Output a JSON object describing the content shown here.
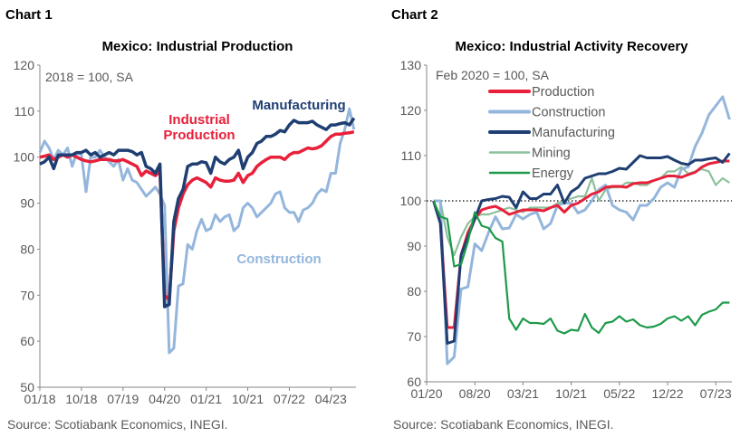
{
  "chart_data": [
    {
      "type": "line",
      "panel_label": "Chart 1",
      "title": "Mexico: Industrial Production",
      "note": "2018 = 100, SA",
      "source": "Source: Scotiabank Economics, INEGI.",
      "x_start": "01/18",
      "x_end": "09/23",
      "x_ticks": [
        "01/18",
        "10/18",
        "07/19",
        "04/20",
        "01/21",
        "10/21",
        "07/22",
        "04/23"
      ],
      "y_ticks": [
        50,
        60,
        70,
        80,
        90,
        100,
        110,
        120
      ],
      "ylim": [
        50,
        120
      ],
      "grid": false,
      "series": [
        {
          "name": "Industrial Production",
          "label_lines": [
            "Industrial",
            "Production"
          ],
          "color": "#e8203a",
          "values": [
            100,
            100.2,
            100.5,
            99.5,
            100,
            100.5,
            100,
            100.5,
            100,
            99.5,
            99.2,
            99,
            99.2,
            99.5,
            99.5,
            99.5,
            99.2,
            99.2,
            99.5,
            99,
            98.5,
            98,
            96,
            97,
            96.5,
            96,
            97,
            70,
            69,
            84,
            89,
            92,
            94,
            95,
            95.5,
            95,
            94.5,
            93.5,
            95.5,
            95,
            94.8,
            94.8,
            95,
            96.5,
            94.5,
            96,
            96.5,
            98,
            98.8,
            99.5,
            100,
            100,
            100,
            99.5,
            100.5,
            101,
            101,
            101.5,
            102,
            101.8,
            102,
            102.5,
            103.5,
            104.5,
            105,
            105,
            105.2,
            105.3,
            105.5
          ]
        },
        {
          "name": "Manufacturing",
          "label_lines": [
            "Manufacturing"
          ],
          "color": "#1f3f73",
          "values": [
            98.5,
            99,
            100,
            97.5,
            100.5,
            100.5,
            100.5,
            100.5,
            101,
            101,
            101.5,
            100.5,
            101,
            100,
            100.5,
            101,
            100.5,
            101.5,
            101.5,
            101.5,
            101.2,
            100.5,
            101,
            98,
            97.5,
            96.5,
            98.5,
            67.5,
            68,
            86,
            91,
            93,
            98,
            98.5,
            98.5,
            99,
            98.8,
            96.5,
            100,
            99,
            98.5,
            99.5,
            100,
            101.5,
            97.5,
            100,
            101,
            103,
            103.5,
            104.5,
            104.5,
            105,
            105.8,
            105.5,
            107,
            108,
            107.5,
            107.5,
            107.5,
            107.8,
            107,
            106.5,
            106,
            107,
            107,
            107.3,
            107.5,
            107,
            108.5
          ]
        },
        {
          "name": "Construction",
          "label_lines": [
            "Construction"
          ],
          "color": "#94b6dc",
          "values": [
            101,
            103.5,
            102,
            99.5,
            101.5,
            100.5,
            102,
            98,
            101,
            100.5,
            92.5,
            100,
            100,
            101.5,
            100,
            99,
            98,
            99.5,
            95,
            97.5,
            95,
            94.5,
            93,
            91.5,
            92.5,
            93.5,
            92,
            89.5,
            57.5,
            58.5,
            72,
            72.5,
            81,
            80,
            84,
            86.5,
            84,
            84.5,
            87.5,
            86,
            87,
            87.5,
            84,
            85,
            89,
            90,
            89,
            87,
            88,
            89,
            90,
            92,
            92.5,
            89,
            88,
            88,
            86,
            88.5,
            89,
            90,
            92,
            93,
            92.5,
            96.5,
            96.5,
            103,
            106,
            110.5,
            106
          ]
        }
      ]
    },
    {
      "type": "line",
      "panel_label": "Chart 2",
      "title": "Mexico: Industrial Activity Recovery",
      "note": "Feb 2020 = 100, SA",
      "source": "Source: Scotiabank Economics, INEGI.",
      "x_start": "02/20",
      "x_end": "09/23",
      "x_ticks": [
        "01/20",
        "08/20",
        "03/21",
        "10/21",
        "05/22",
        "12/22",
        "07/23"
      ],
      "y_ticks": [
        60,
        70,
        80,
        90,
        100,
        110,
        120,
        130
      ],
      "ylim": [
        60,
        130
      ],
      "reference_line": 100,
      "grid": false,
      "legend_position": "top-left",
      "series": [
        {
          "name": "Production",
          "color": "#e8203a",
          "values": [
            100,
            95,
            72,
            72,
            88,
            93,
            96,
            98,
            98.5,
            98.8,
            98,
            97,
            97.5,
            98,
            98,
            98,
            97.8,
            98.5,
            99,
            97.5,
            99,
            99.5,
            100.5,
            101.5,
            102,
            103,
            103.2,
            103.2,
            103,
            103.8,
            104,
            104,
            104.5,
            105,
            105.5,
            105.5,
            105.2,
            105.8,
            106.3,
            107.5,
            108.2,
            108.5,
            108.8,
            108.8
          ]
        },
        {
          "name": "Construction",
          "color": "#94b6dc",
          "values": [
            100,
            100,
            64,
            65.5,
            80.5,
            81,
            90.5,
            89,
            93,
            96.5,
            93.8,
            94,
            97,
            96,
            97,
            97.5,
            93.8,
            95,
            99,
            99.5,
            99.5,
            97.3,
            98,
            100,
            102.5,
            103.5,
            99,
            98,
            97.5,
            95.8,
            99,
            99,
            100.5,
            103,
            104,
            103,
            107,
            107.5,
            112,
            115,
            119,
            121,
            123,
            118
          ]
        },
        {
          "name": "Manufacturing",
          "color": "#1f3f73",
          "values": [
            100,
            95,
            68.5,
            69,
            88,
            92,
            96,
            100,
            100.3,
            100.5,
            101,
            100.8,
            98.5,
            102,
            100.5,
            100.5,
            101.5,
            101.5,
            103.5,
            99.5,
            102,
            103,
            105,
            105.5,
            106,
            106,
            106.5,
            107.2,
            107,
            108.5,
            110,
            109.5,
            109.5,
            109.5,
            109.8,
            109,
            108.3,
            108,
            109,
            109,
            109.3,
            109.5,
            108.5,
            110.5
          ]
        },
        {
          "name": "Mining",
          "color": "#8cc09a",
          "values": [
            100,
            100,
            92,
            88,
            92,
            95,
            96.5,
            97,
            97,
            97.5,
            98,
            98.5,
            98,
            97.5,
            98.5,
            98.5,
            98.5,
            98.5,
            99.5,
            100,
            100.5,
            101,
            101,
            105,
            100,
            102.5,
            103,
            103,
            104,
            104,
            103.5,
            103.5,
            104.5,
            105,
            106.5,
            106.5,
            107.5,
            106,
            106.5,
            107,
            106.5,
            103.5,
            105,
            104
          ]
        },
        {
          "name": "Energy",
          "color": "#1e9a4a",
          "values": [
            100,
            96.5,
            96,
            85.5,
            86,
            91,
            97.5,
            94.5,
            94,
            91.8,
            91,
            74,
            71.5,
            74,
            73,
            73,
            72.8,
            74,
            71.3,
            70.7,
            71.5,
            71.3,
            75,
            72,
            70.8,
            73,
            73.3,
            74.5,
            73.3,
            73.8,
            72.5,
            72,
            72.2,
            72.8,
            74,
            74.5,
            73.5,
            74.5,
            72.5,
            74.8,
            75.5,
            76,
            77.5,
            77.5
          ]
        }
      ]
    }
  ]
}
